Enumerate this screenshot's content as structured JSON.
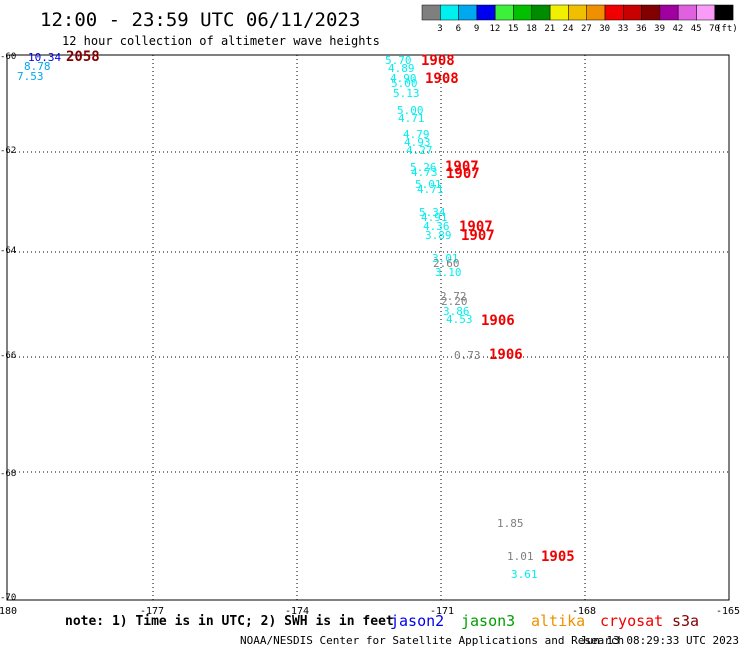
{
  "header": {
    "title": "12:00 - 23:59 UTC 06/11/2023",
    "subtitle": "12 hour collection of altimeter wave heights"
  },
  "legend": {
    "colors": [
      "#7f7f7f",
      "#00f0f0",
      "#00a8f0",
      "#0000f0",
      "#3cf03c",
      "#00c000",
      "#008c00",
      "#f0f000",
      "#f0c000",
      "#f09000",
      "#f00000",
      "#c80000",
      "#820000",
      "#a000a0",
      "#e060e0",
      "#f89cf8",
      "#000000"
    ],
    "labels": [
      "3",
      "6",
      "9",
      "12",
      "15",
      "18",
      "21",
      "24",
      "27",
      "30",
      "33",
      "36",
      "39",
      "42",
      "45",
      "70"
    ],
    "unit": "(ft)"
  },
  "axes": {
    "x_ticks": [
      "-180",
      "-177",
      "-174",
      "-171",
      "-168",
      "-165"
    ],
    "y_ticks": [
      "-60",
      "-62",
      "-64",
      "-66",
      "-68",
      "-70"
    ]
  },
  "observations": [
    {
      "t": "10.34",
      "c": "#0000f0"
    },
    {
      "t": "8.78",
      "c": "#00a8f0"
    },
    {
      "t": "7.53",
      "c": "#00a8f0"
    },
    {
      "t": "2058",
      "c": "#820000"
    },
    {
      "t": "5.70",
      "c": "#00f0f0"
    },
    {
      "t": "4.89",
      "c": "#00f0f0"
    },
    {
      "t": "4.90",
      "c": "#00f0f0"
    },
    {
      "t": "5.00",
      "c": "#00f0f0"
    },
    {
      "t": "5.13",
      "c": "#00f0f0"
    },
    {
      "t": "1908",
      "c": "#f00000"
    },
    {
      "t": "1908",
      "c": "#f00000"
    },
    {
      "t": "5.00",
      "c": "#00f0f0"
    },
    {
      "t": "4.71",
      "c": "#00f0f0"
    },
    {
      "t": "4.79",
      "c": "#00f0f0"
    },
    {
      "t": "4.93",
      "c": "#00f0f0"
    },
    {
      "t": "4.27",
      "c": "#00f0f0"
    },
    {
      "t": "5.26",
      "c": "#00f0f0"
    },
    {
      "t": "4.73",
      "c": "#00f0f0"
    },
    {
      "t": "1907",
      "c": "#f00000"
    },
    {
      "t": "1907",
      "c": "#f00000"
    },
    {
      "t": "5.01",
      "c": "#00f0f0"
    },
    {
      "t": "4.71",
      "c": "#00f0f0"
    },
    {
      "t": "5.34",
      "c": "#00f0f0"
    },
    {
      "t": "4.91",
      "c": "#00f0f0"
    },
    {
      "t": "4.36",
      "c": "#00f0f0"
    },
    {
      "t": "3.89",
      "c": "#00f0f0"
    },
    {
      "t": "1907",
      "c": "#f00000"
    },
    {
      "t": "1907",
      "c": "#f00000"
    },
    {
      "t": "3.01",
      "c": "#00f0f0"
    },
    {
      "t": "2.60",
      "c": "#7f7f7f"
    },
    {
      "t": "3.10",
      "c": "#00f0f0"
    },
    {
      "t": "2.72",
      "c": "#7f7f7f"
    },
    {
      "t": "2.20",
      "c": "#7f7f7f"
    },
    {
      "t": "3.86",
      "c": "#00f0f0"
    },
    {
      "t": "4.53",
      "c": "#00f0f0"
    },
    {
      "t": "1906",
      "c": "#f00000"
    },
    {
      "t": "0.73",
      "c": "#7f7f7f"
    },
    {
      "t": "1906",
      "c": "#f00000"
    },
    {
      "t": "1.85",
      "c": "#7f7f7f"
    },
    {
      "t": "1.01",
      "c": "#7f7f7f"
    },
    {
      "t": "1905",
      "c": "#f00000"
    },
    {
      "t": "3.61",
      "c": "#00f0f0"
    }
  ],
  "footer": {
    "note": "note: 1) Time is in UTC; 2) SWH is in feet",
    "satellites": [
      {
        "name": "jason2",
        "color": "#0000f0"
      },
      {
        "name": "jason3",
        "color": "#00a000"
      },
      {
        "name": "altika",
        "color": "#f09000"
      },
      {
        "name": "cryosat",
        "color": "#f00000"
      },
      {
        "name": "s3a",
        "color": "#820000"
      }
    ],
    "credit": "NOAA/NESDIS Center for Satellite Applications and Research",
    "timestamp": "Jun 13 08:29:33 UTC 2023"
  }
}
